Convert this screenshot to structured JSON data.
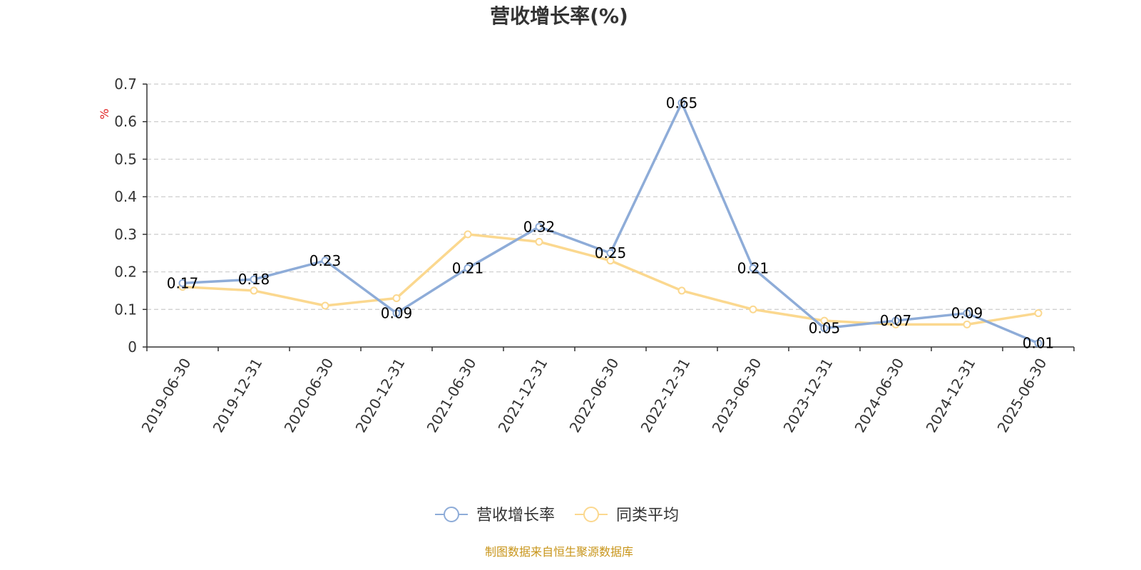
{
  "chart_data": {
    "type": "line",
    "title": "营收增长率(%)",
    "ylabel": "%",
    "ylim": [
      0,
      0.7
    ],
    "yticks": [
      0,
      0.1,
      0.2,
      0.3,
      0.4,
      0.5,
      0.6,
      0.7
    ],
    "grid": true,
    "legend_position": "bottom-center",
    "categories": [
      "2019-06-30",
      "2019-12-31",
      "2020-06-30",
      "2020-12-31",
      "2021-06-30",
      "2021-12-31",
      "2022-06-30",
      "2022-12-31",
      "2023-06-30",
      "2023-12-31",
      "2024-06-30",
      "2024-12-31",
      "2025-06-30"
    ],
    "series": [
      {
        "name": "营收增长率",
        "color": "#8eacd8",
        "values": [
          0.17,
          0.18,
          0.23,
          0.09,
          0.21,
          0.32,
          0.25,
          0.65,
          0.21,
          0.05,
          0.07,
          0.09,
          0.01
        ],
        "labels": [
          "0.17",
          "0.18",
          "0.23",
          "0.09",
          "0.21",
          "0.32",
          "0.25",
          "0.65",
          "0.21",
          "0.05",
          "0.07",
          "0.09",
          "0.01"
        ]
      },
      {
        "name": "同类平均",
        "color": "#fbd88f",
        "values": [
          0.16,
          0.15,
          0.11,
          0.13,
          0.3,
          0.28,
          0.23,
          0.15,
          0.1,
          0.07,
          0.06,
          0.06,
          0.09
        ]
      }
    ],
    "source": "制图数据来自恒生聚源数据库",
    "unit_color": "#e02020",
    "source_color": "#c8951a"
  }
}
